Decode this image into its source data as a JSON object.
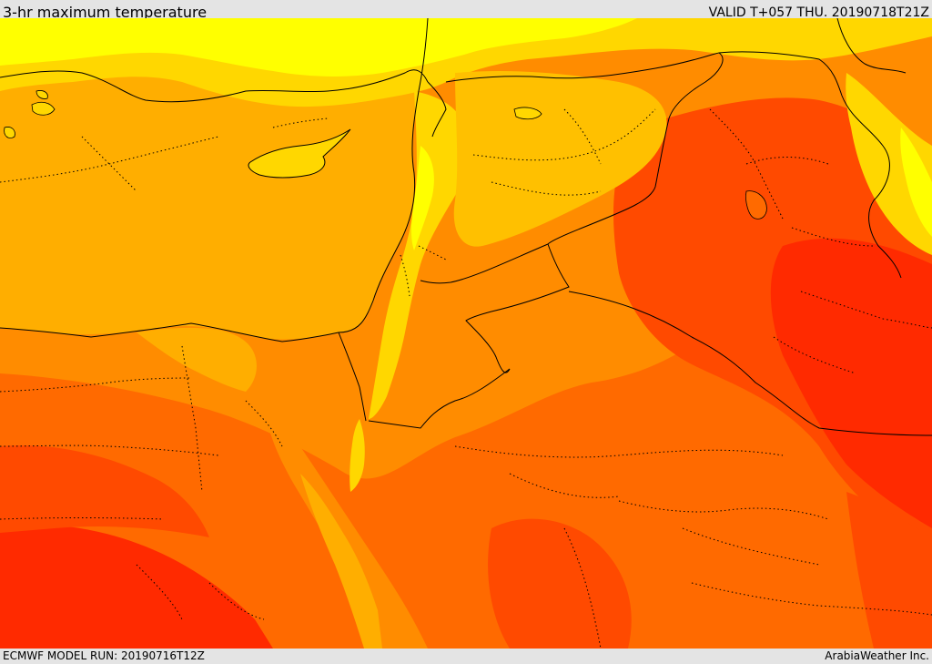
{
  "header": {
    "title": "3-hr maximum temperature",
    "valid": "VALID T+057 THU. 20190718T21Z"
  },
  "footer": {
    "model_run": "ECMWF MODEL RUN: 20190716T12Z",
    "credit": "ArabiaWeather Inc."
  },
  "map": {
    "colors": {
      "sea": "#ffae00",
      "coast_light": "#ffd700",
      "coast_bright": "#ffff00",
      "land_warm": "#ff8c00",
      "land_hot": "#ff6a00",
      "land_hotter": "#ff4a00",
      "land_hottest": "#ff2a00",
      "border": "#000000"
    }
  }
}
